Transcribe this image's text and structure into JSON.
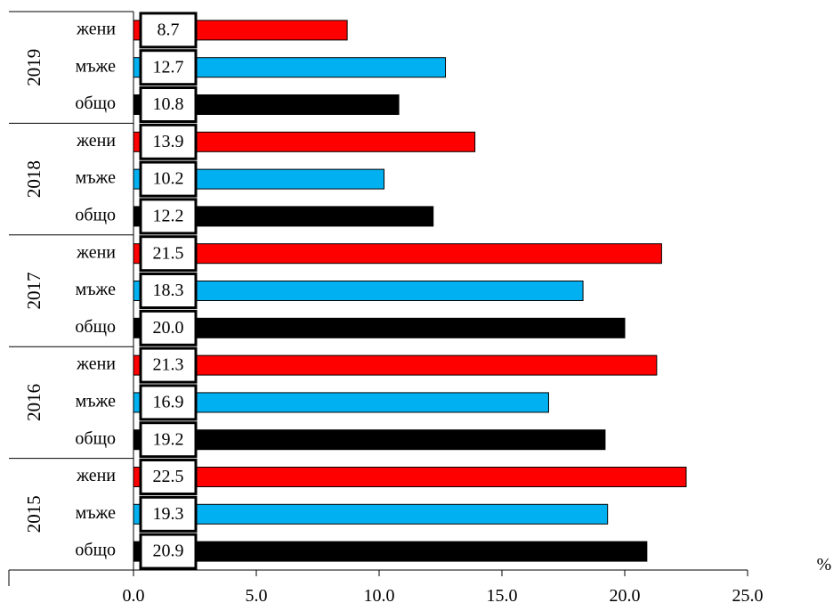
{
  "chart_data": {
    "type": "bar",
    "orientation": "horizontal",
    "groups": [
      {
        "year": "2019",
        "bars": [
          {
            "category": "жени",
            "value": 8.7,
            "label": "8.7",
            "color": "#ff0000"
          },
          {
            "category": "мъже",
            "value": 12.7,
            "label": "12.7",
            "color": "#00b0f0"
          },
          {
            "category": "общо",
            "value": 10.8,
            "label": "10.8",
            "color": "#000000"
          }
        ]
      },
      {
        "year": "2018",
        "bars": [
          {
            "category": "жени",
            "value": 13.9,
            "label": "13.9",
            "color": "#ff0000"
          },
          {
            "category": "мъже",
            "value": 10.2,
            "label": "10.2",
            "color": "#00b0f0"
          },
          {
            "category": "общо",
            "value": 12.2,
            "label": "12.2",
            "color": "#000000"
          }
        ]
      },
      {
        "year": "2017",
        "bars": [
          {
            "category": "жени",
            "value": 21.5,
            "label": "21.5",
            "color": "#ff0000"
          },
          {
            "category": "мъже",
            "value": 18.3,
            "label": "18.3",
            "color": "#00b0f0"
          },
          {
            "category": "общо",
            "value": 20.0,
            "label": "20.0",
            "color": "#000000"
          }
        ]
      },
      {
        "year": "2016",
        "bars": [
          {
            "category": "жени",
            "value": 21.3,
            "label": "21.3",
            "color": "#ff0000"
          },
          {
            "category": "мъже",
            "value": 16.9,
            "label": "16.9",
            "color": "#00b0f0"
          },
          {
            "category": "общо",
            "value": 19.2,
            "label": "19.2",
            "color": "#000000"
          }
        ]
      },
      {
        "year": "2015",
        "bars": [
          {
            "category": "жени",
            "value": 22.5,
            "label": "22.5",
            "color": "#ff0000"
          },
          {
            "category": "мъже",
            "value": 19.3,
            "label": "19.3",
            "color": "#00b0f0"
          },
          {
            "category": "общо",
            "value": 20.9,
            "label": "20.9",
            "color": "#000000"
          }
        ]
      }
    ],
    "xlim": [
      0,
      25
    ],
    "xticks": [
      "0.0",
      "5.0",
      "10.0",
      "15.0",
      "20.0",
      "25.0"
    ],
    "xlabel": "%",
    "grid": false,
    "legend": "none"
  }
}
